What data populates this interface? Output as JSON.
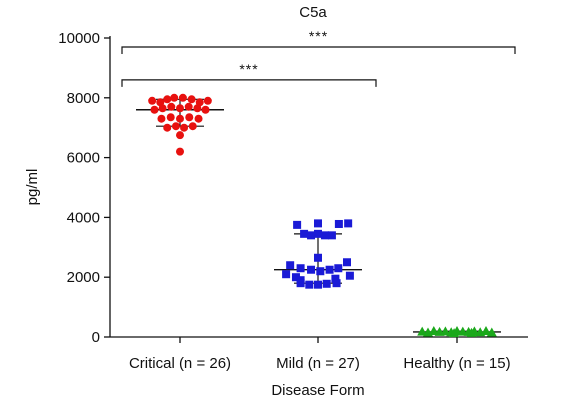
{
  "chart_data": {
    "type": "scatter",
    "title": "C5a",
    "xlabel": "Disease Form",
    "ylabel": "pg/ml",
    "ylim": [
      0,
      10000
    ],
    "yticks": [
      0,
      2000,
      4000,
      6000,
      8000,
      10000
    ],
    "ytick_labels": [
      "0",
      "2000",
      "4000",
      "6000",
      "8000",
      "10000"
    ],
    "categories": [
      "Critical (n = 26)",
      "Mild (n = 27)",
      "Healthy (n = 15)"
    ],
    "grid": false,
    "series": [
      {
        "category": "Critical (n = 26)",
        "marker": "circle",
        "color": "#e8110f",
        "points": [
          {
            "x": -0.48,
            "y": 7900
          },
          {
            "x": -0.34,
            "y": 7850
          },
          {
            "x": -0.22,
            "y": 7950
          },
          {
            "x": -0.1,
            "y": 8000
          },
          {
            "x": 0.05,
            "y": 8000
          },
          {
            "x": 0.2,
            "y": 7950
          },
          {
            "x": 0.34,
            "y": 7850
          },
          {
            "x": 0.48,
            "y": 7900
          },
          {
            "x": -0.44,
            "y": 7600
          },
          {
            "x": -0.3,
            "y": 7650
          },
          {
            "x": -0.15,
            "y": 7700
          },
          {
            "x": 0.0,
            "y": 7650
          },
          {
            "x": 0.15,
            "y": 7700
          },
          {
            "x": 0.3,
            "y": 7650
          },
          {
            "x": 0.44,
            "y": 7600
          },
          {
            "x": -0.32,
            "y": 7300
          },
          {
            "x": -0.16,
            "y": 7350
          },
          {
            "x": 0.0,
            "y": 7300
          },
          {
            "x": 0.16,
            "y": 7350
          },
          {
            "x": 0.32,
            "y": 7300
          },
          {
            "x": -0.22,
            "y": 7000
          },
          {
            "x": -0.07,
            "y": 7050
          },
          {
            "x": 0.07,
            "y": 7000
          },
          {
            "x": 0.22,
            "y": 7050
          },
          {
            "x": 0.0,
            "y": 6750
          },
          {
            "x": 0.0,
            "y": 6200
          }
        ],
        "median": 7600,
        "iqr": [
          7050,
          7950
        ]
      },
      {
        "category": "Mild (n = 27)",
        "marker": "square",
        "color": "#1a1ad6",
        "points": [
          {
            "x": -0.36,
            "y": 3750
          },
          {
            "x": 0.0,
            "y": 3800
          },
          {
            "x": 0.36,
            "y": 3780
          },
          {
            "x": 0.52,
            "y": 3800
          },
          {
            "x": -0.24,
            "y": 3450
          },
          {
            "x": -0.12,
            "y": 3400
          },
          {
            "x": 0.0,
            "y": 3450
          },
          {
            "x": 0.12,
            "y": 3400
          },
          {
            "x": 0.24,
            "y": 3400
          },
          {
            "x": 0.0,
            "y": 2650
          },
          {
            "x": -0.48,
            "y": 2400
          },
          {
            "x": -0.3,
            "y": 2300
          },
          {
            "x": -0.12,
            "y": 2250
          },
          {
            "x": 0.04,
            "y": 2200
          },
          {
            "x": 0.2,
            "y": 2250
          },
          {
            "x": 0.35,
            "y": 2300
          },
          {
            "x": 0.5,
            "y": 2500
          },
          {
            "x": -0.55,
            "y": 2100
          },
          {
            "x": -0.38,
            "y": 2000
          },
          {
            "x": 0.55,
            "y": 2050
          },
          {
            "x": -0.3,
            "y": 1900
          },
          {
            "x": 0.3,
            "y": 1950
          },
          {
            "x": -0.3,
            "y": 1800
          },
          {
            "x": -0.15,
            "y": 1750
          },
          {
            "x": 0.0,
            "y": 1750
          },
          {
            "x": 0.15,
            "y": 1780
          },
          {
            "x": 0.32,
            "y": 1800
          }
        ],
        "median": 2250,
        "iqr": [
          1800,
          3450
        ]
      },
      {
        "category": "Healthy (n = 15)",
        "marker": "triangle",
        "color": "#1ba81b",
        "points": [
          {
            "x": -0.6,
            "y": 180
          },
          {
            "x": -0.5,
            "y": 150
          },
          {
            "x": -0.4,
            "y": 200
          },
          {
            "x": -0.3,
            "y": 170
          },
          {
            "x": -0.2,
            "y": 190
          },
          {
            "x": -0.1,
            "y": 160
          },
          {
            "x": 0.0,
            "y": 200
          },
          {
            "x": 0.1,
            "y": 180
          },
          {
            "x": 0.2,
            "y": 170
          },
          {
            "x": 0.3,
            "y": 190
          },
          {
            "x": 0.4,
            "y": 160
          },
          {
            "x": 0.5,
            "y": 200
          },
          {
            "x": 0.6,
            "y": 150
          },
          {
            "x": -0.05,
            "y": 130
          },
          {
            "x": 0.25,
            "y": 140
          }
        ],
        "median": 170,
        "iqr": [
          150,
          195
        ]
      }
    ],
    "significance": [
      {
        "from": 0,
        "to": 2,
        "y": 9700,
        "label": "***"
      },
      {
        "from": 0,
        "to": 1,
        "y": 8600,
        "label": "***"
      }
    ]
  }
}
